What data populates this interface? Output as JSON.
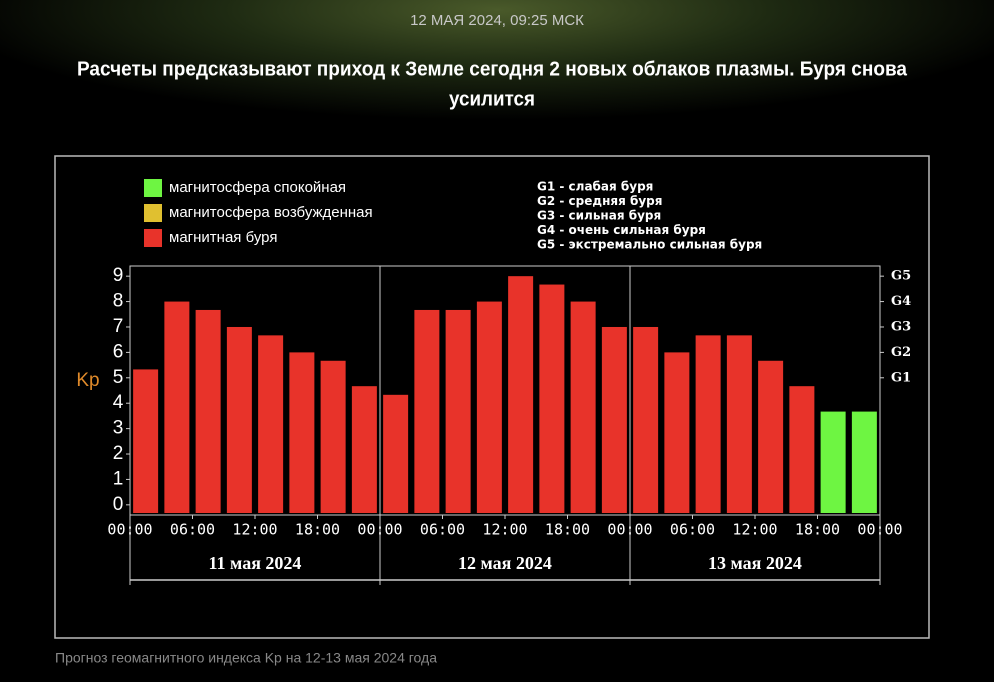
{
  "header": {
    "timestamp": "12 МАЯ 2024, 09:25 МСК",
    "title_lines": [
      "Расчеты предсказывают приход к Земле сегодня 2 новых облаков плазмы. Буря снова",
      "усилится"
    ]
  },
  "caption": "Прогноз геомагнитного индекса Kp на 12-13 мая 2024 года",
  "chart_data": {
    "type": "bar",
    "ylabel": "Kp",
    "legend": [
      {
        "label": "магнитосфера спокойная",
        "color": "#6ef542"
      },
      {
        "label": "магнитосфера возбужденная",
        "color": "#e0c030"
      },
      {
        "label": "магнитная буря",
        "color": "#e8332a"
      }
    ],
    "storm_scale": [
      "G1 - слабая буря",
      "G2 - средняя буря",
      "G3 - сильная буря",
      "G4 - очень сильная буря",
      "G5 - экстремально сильная буря"
    ],
    "x": [
      0,
      3,
      6,
      9,
      12,
      15,
      18,
      21,
      24,
      27,
      30,
      33,
      36,
      39,
      42,
      45,
      48,
      51,
      54,
      57,
      60,
      63,
      66,
      69
    ],
    "values": [
      5.33,
      8,
      7.67,
      7,
      6.67,
      6,
      5.67,
      4.67,
      4.33,
      7.67,
      7.67,
      8,
      9,
      8.67,
      8,
      7,
      7,
      6,
      6.67,
      6.67,
      5.67,
      4.67,
      3.67,
      3.67
    ],
    "colors": [
      "#e8332a",
      "#e8332a",
      "#e8332a",
      "#e8332a",
      "#e8332a",
      "#e8332a",
      "#e8332a",
      "#e8332a",
      "#e8332a",
      "#e8332a",
      "#e8332a",
      "#e8332a",
      "#e8332a",
      "#e8332a",
      "#e8332a",
      "#e8332a",
      "#e8332a",
      "#e8332a",
      "#e8332a",
      "#e8332a",
      "#e8332a",
      "#e8332a",
      "#6ef542",
      "#6ef542"
    ],
    "xlim": [
      0,
      72
    ],
    "xticks": [
      {
        "value": 0,
        "label": "00:00"
      },
      {
        "value": 6,
        "label": "06:00"
      },
      {
        "value": 12,
        "label": "12:00"
      },
      {
        "value": 18,
        "label": "18:00"
      },
      {
        "value": 24,
        "label": "00:00"
      },
      {
        "value": 30,
        "label": "06:00"
      },
      {
        "value": 36,
        "label": "12:00"
      },
      {
        "value": 42,
        "label": "18:00"
      },
      {
        "value": 48,
        "label": "00:00"
      },
      {
        "value": 54,
        "label": "06:00"
      },
      {
        "value": 60,
        "label": "12:00"
      },
      {
        "value": 66,
        "label": "18:00"
      },
      {
        "value": 72,
        "label": "00:00"
      }
    ],
    "ylim": [
      -0.4,
      9.4
    ],
    "yticks": [
      0,
      1,
      2,
      3,
      4,
      5,
      6,
      7,
      8,
      9
    ],
    "y2ticks": [
      {
        "value": 5,
        "label": "G1"
      },
      {
        "value": 6,
        "label": "G2"
      },
      {
        "value": 7,
        "label": "G3"
      },
      {
        "value": 8,
        "label": "G4"
      },
      {
        "value": 9,
        "label": "G5"
      }
    ],
    "days": [
      {
        "label": "11 мая 2024",
        "start": 0,
        "end": 24
      },
      {
        "label": "12 мая 2024",
        "start": 24,
        "end": 48
      },
      {
        "label": "13 мая 2024",
        "start": 48,
        "end": 72
      }
    ]
  }
}
